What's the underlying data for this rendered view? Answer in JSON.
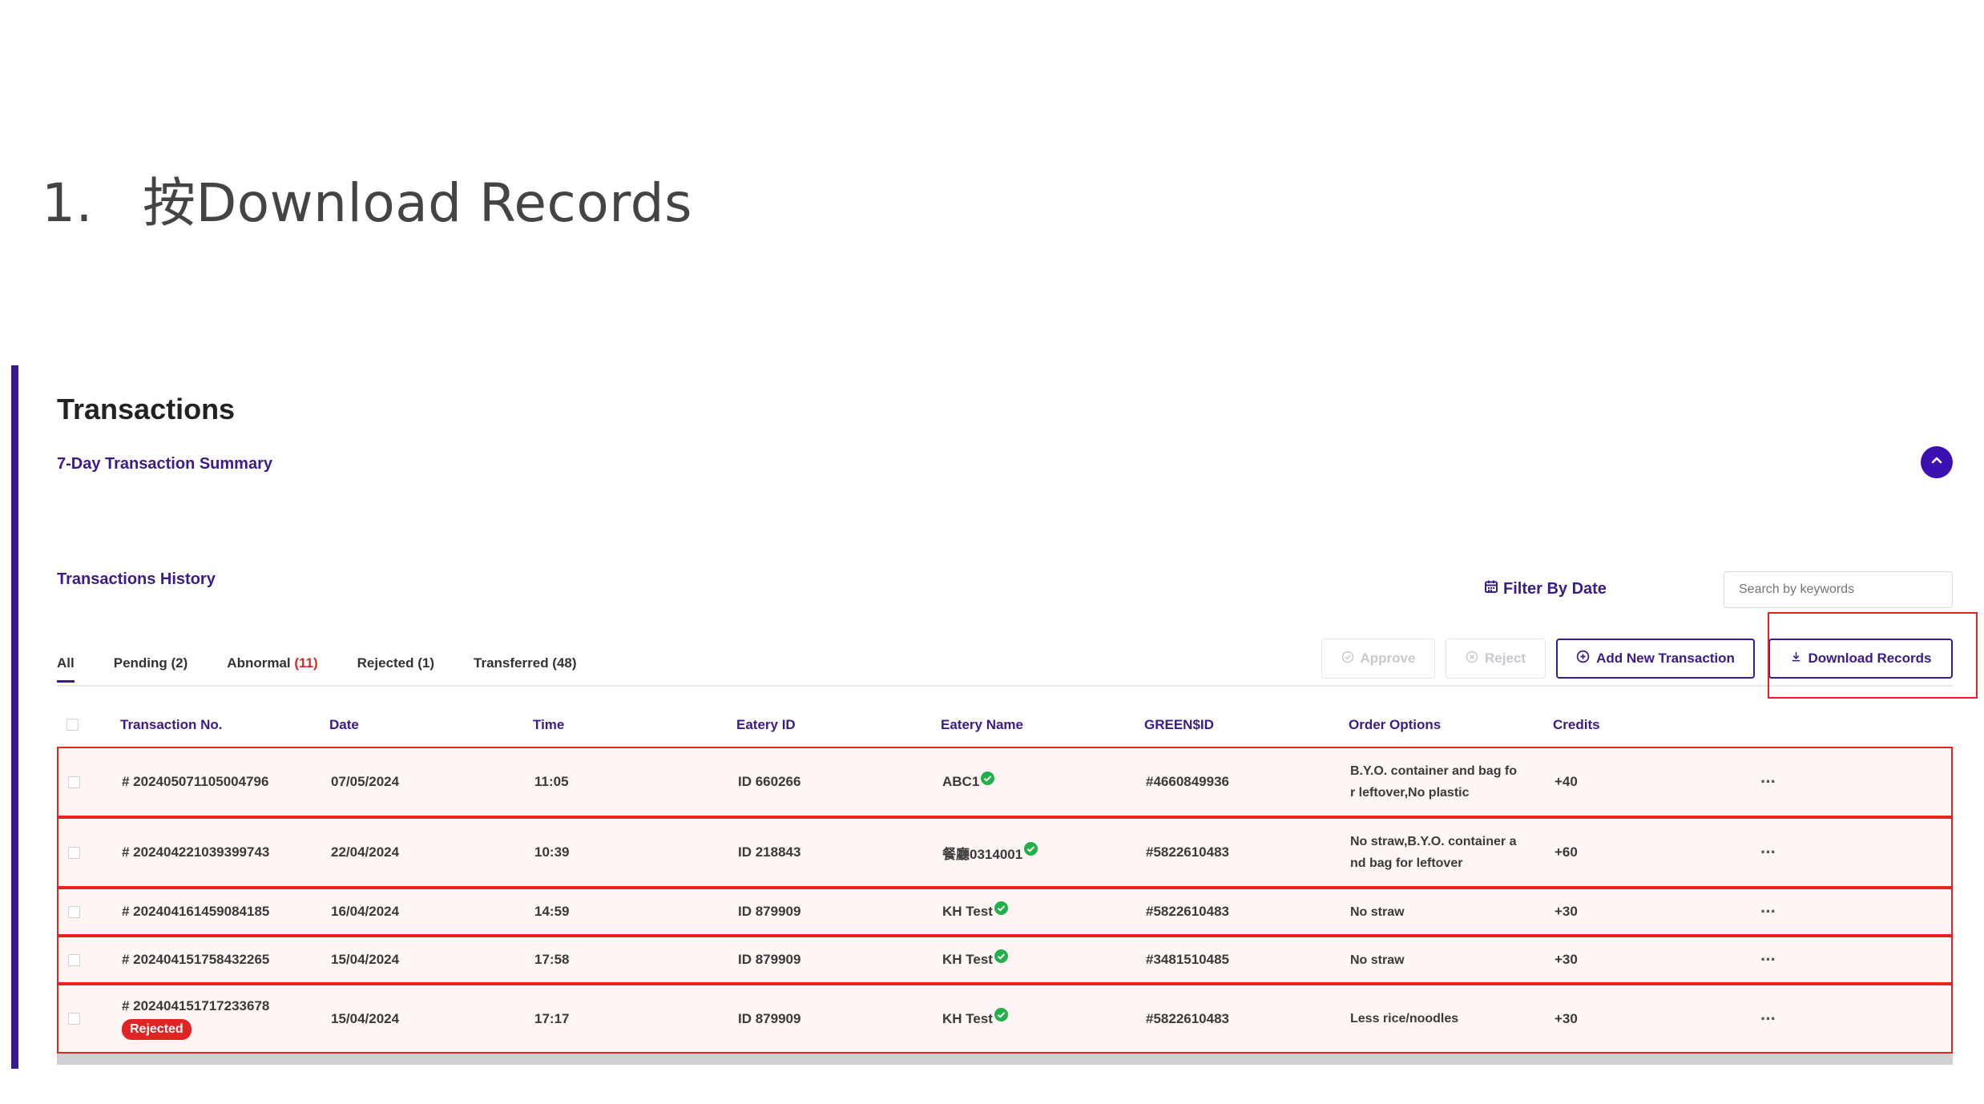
{
  "slide": {
    "step_number": "1.",
    "instruction": "按Download Records"
  },
  "page": {
    "title": "Transactions",
    "summary_link": "7-Day Transaction Summary",
    "history_title": "Transactions History",
    "filter_by_date": "Filter By Date",
    "search_placeholder": "Search by keywords"
  },
  "tabs": [
    {
      "label": "All",
      "active": true
    },
    {
      "label": "Pending (2)"
    },
    {
      "label": "Abnormal ",
      "count": "(11)"
    },
    {
      "label": "Rejected (1)"
    },
    {
      "label": "Transferred (48)"
    }
  ],
  "actions": {
    "approve": "Approve",
    "reject": "Reject",
    "add_new": "Add New Transaction",
    "download": "Download Records"
  },
  "table": {
    "headers": [
      "Transaction No.",
      "Date",
      "Time",
      "Eatery ID",
      "Eatery Name",
      "GREEN$ID",
      "Order Options",
      "Credits"
    ],
    "rows": [
      {
        "no": "# 202405071105004796",
        "date": "07/05/2024",
        "time": "11:05",
        "eatery_id": "ID 660266",
        "eatery_name": "ABC1",
        "green_id": "#4660849936",
        "options_1": "B.Y.O. container and bag fo",
        "options_2": "r leftover,No plastic",
        "credits": "+40",
        "more": "···"
      },
      {
        "no": "# 202404221039399743",
        "date": "22/04/2024",
        "time": "10:39",
        "eatery_id": "ID 218843",
        "eatery_name": "餐廳0314001",
        "green_id": "#5822610483",
        "options_1": "No straw,B.Y.O. container a",
        "options_2": "nd bag for leftover",
        "credits": "+60",
        "more": "···"
      },
      {
        "no": "# 202404161459084185",
        "date": "16/04/2024",
        "time": "14:59",
        "eatery_id": "ID 879909",
        "eatery_name": "KH Test",
        "green_id": "#5822610483",
        "options_1": "No straw",
        "credits": "+30",
        "more": "···"
      },
      {
        "no": "# 202404151758432265",
        "date": "15/04/2024",
        "time": "17:58",
        "eatery_id": "ID 879909",
        "eatery_name": "KH Test",
        "green_id": "#3481510485",
        "options_1": "No straw",
        "credits": "+30",
        "more": "···"
      },
      {
        "no": "# 202404151717233678",
        "status": "Rejected",
        "date": "15/04/2024",
        "time": "17:17",
        "eatery_id": "ID 879909",
        "eatery_name": "KH Test",
        "green_id": "#5822610483",
        "options_1": "Less rice/noodles",
        "credits": "+30",
        "more": "···"
      }
    ]
  },
  "colors": {
    "brand": "#3b1a8c",
    "highlight": "#e52421",
    "verified": "#22b04b",
    "reject_badge": "#e02424"
  },
  "icons": [
    "chevron-up-icon",
    "calendar-icon",
    "check-circle-icon",
    "x-circle-icon",
    "plus-circle-icon",
    "download-icon",
    "verified-icon"
  ]
}
